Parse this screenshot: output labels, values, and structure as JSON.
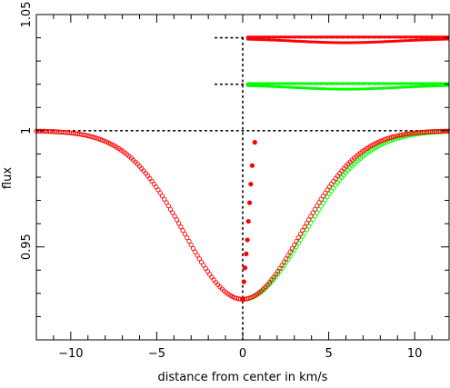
{
  "chart_data": {
    "type": "scatter",
    "title": "",
    "xlabel": "distance from center in km/s",
    "ylabel": "flux",
    "xlim": [
      -12,
      12
    ],
    "ylim": [
      0.91,
      1.05
    ],
    "xticks": [
      -10,
      -5,
      0,
      5,
      10
    ],
    "xtick_labels": [
      "−10",
      "−5",
      "0",
      "5",
      "10"
    ],
    "yticks": [
      0.95,
      1,
      1.05
    ],
    "ytick_labels": [
      "0.95",
      "1",
      "1.05"
    ],
    "grid": false,
    "legend": "none",
    "profile": {
      "continuum": 1.0,
      "minimum": 0.9275,
      "center": 0,
      "sigma_red": 3.4,
      "sigma_green": 3.6
    },
    "reference_lines": [
      {
        "axis": "y",
        "value": 1.0,
        "style": "dotted",
        "x_from": -12,
        "x_to": 12
      },
      {
        "axis": "x",
        "value": 0,
        "style": "dotted",
        "y_from": 0.91,
        "y_to": 1.04
      },
      {
        "axis": "y",
        "value": 1.04,
        "style": "dotted",
        "x_from": -1.6,
        "x_to": 12
      },
      {
        "axis": "y",
        "value": 1.02,
        "style": "dotted",
        "x_from": -1.6,
        "x_to": 12
      }
    ],
    "series": [
      {
        "color": "#ff0000",
        "marker": "open-circle",
        "x_range": [
          -12,
          0
        ],
        "step": 0.12
      },
      {
        "color": "#00ff00",
        "marker": "open-circle",
        "x_range": [
          0,
          12
        ],
        "step": 0.12
      },
      {
        "color": "#ff0000",
        "marker": "open-circle",
        "x_range": [
          0,
          12
        ],
        "step": 0.12
      },
      {
        "color": "#ff0000",
        "marker": "filled-circle",
        "x": [
          0.0,
          0.07,
          0.13,
          0.2,
          0.27,
          0.33,
          0.4,
          0.47,
          0.55,
          0.7
        ],
        "y": [
          0.9275,
          0.935,
          0.941,
          0.947,
          0.953,
          0.961,
          0.969,
          0.977,
          0.985,
          0.995
        ]
      }
    ],
    "offset_bands": [
      {
        "level": 1.04,
        "color": "#ff0000",
        "x_range": [
          0.3,
          12
        ],
        "depth": 0.0018,
        "center": 6
      },
      {
        "level": 1.02,
        "color": "#00ff00",
        "x_range": [
          0.3,
          12
        ],
        "depth": 0.0018,
        "center": 6
      }
    ]
  }
}
